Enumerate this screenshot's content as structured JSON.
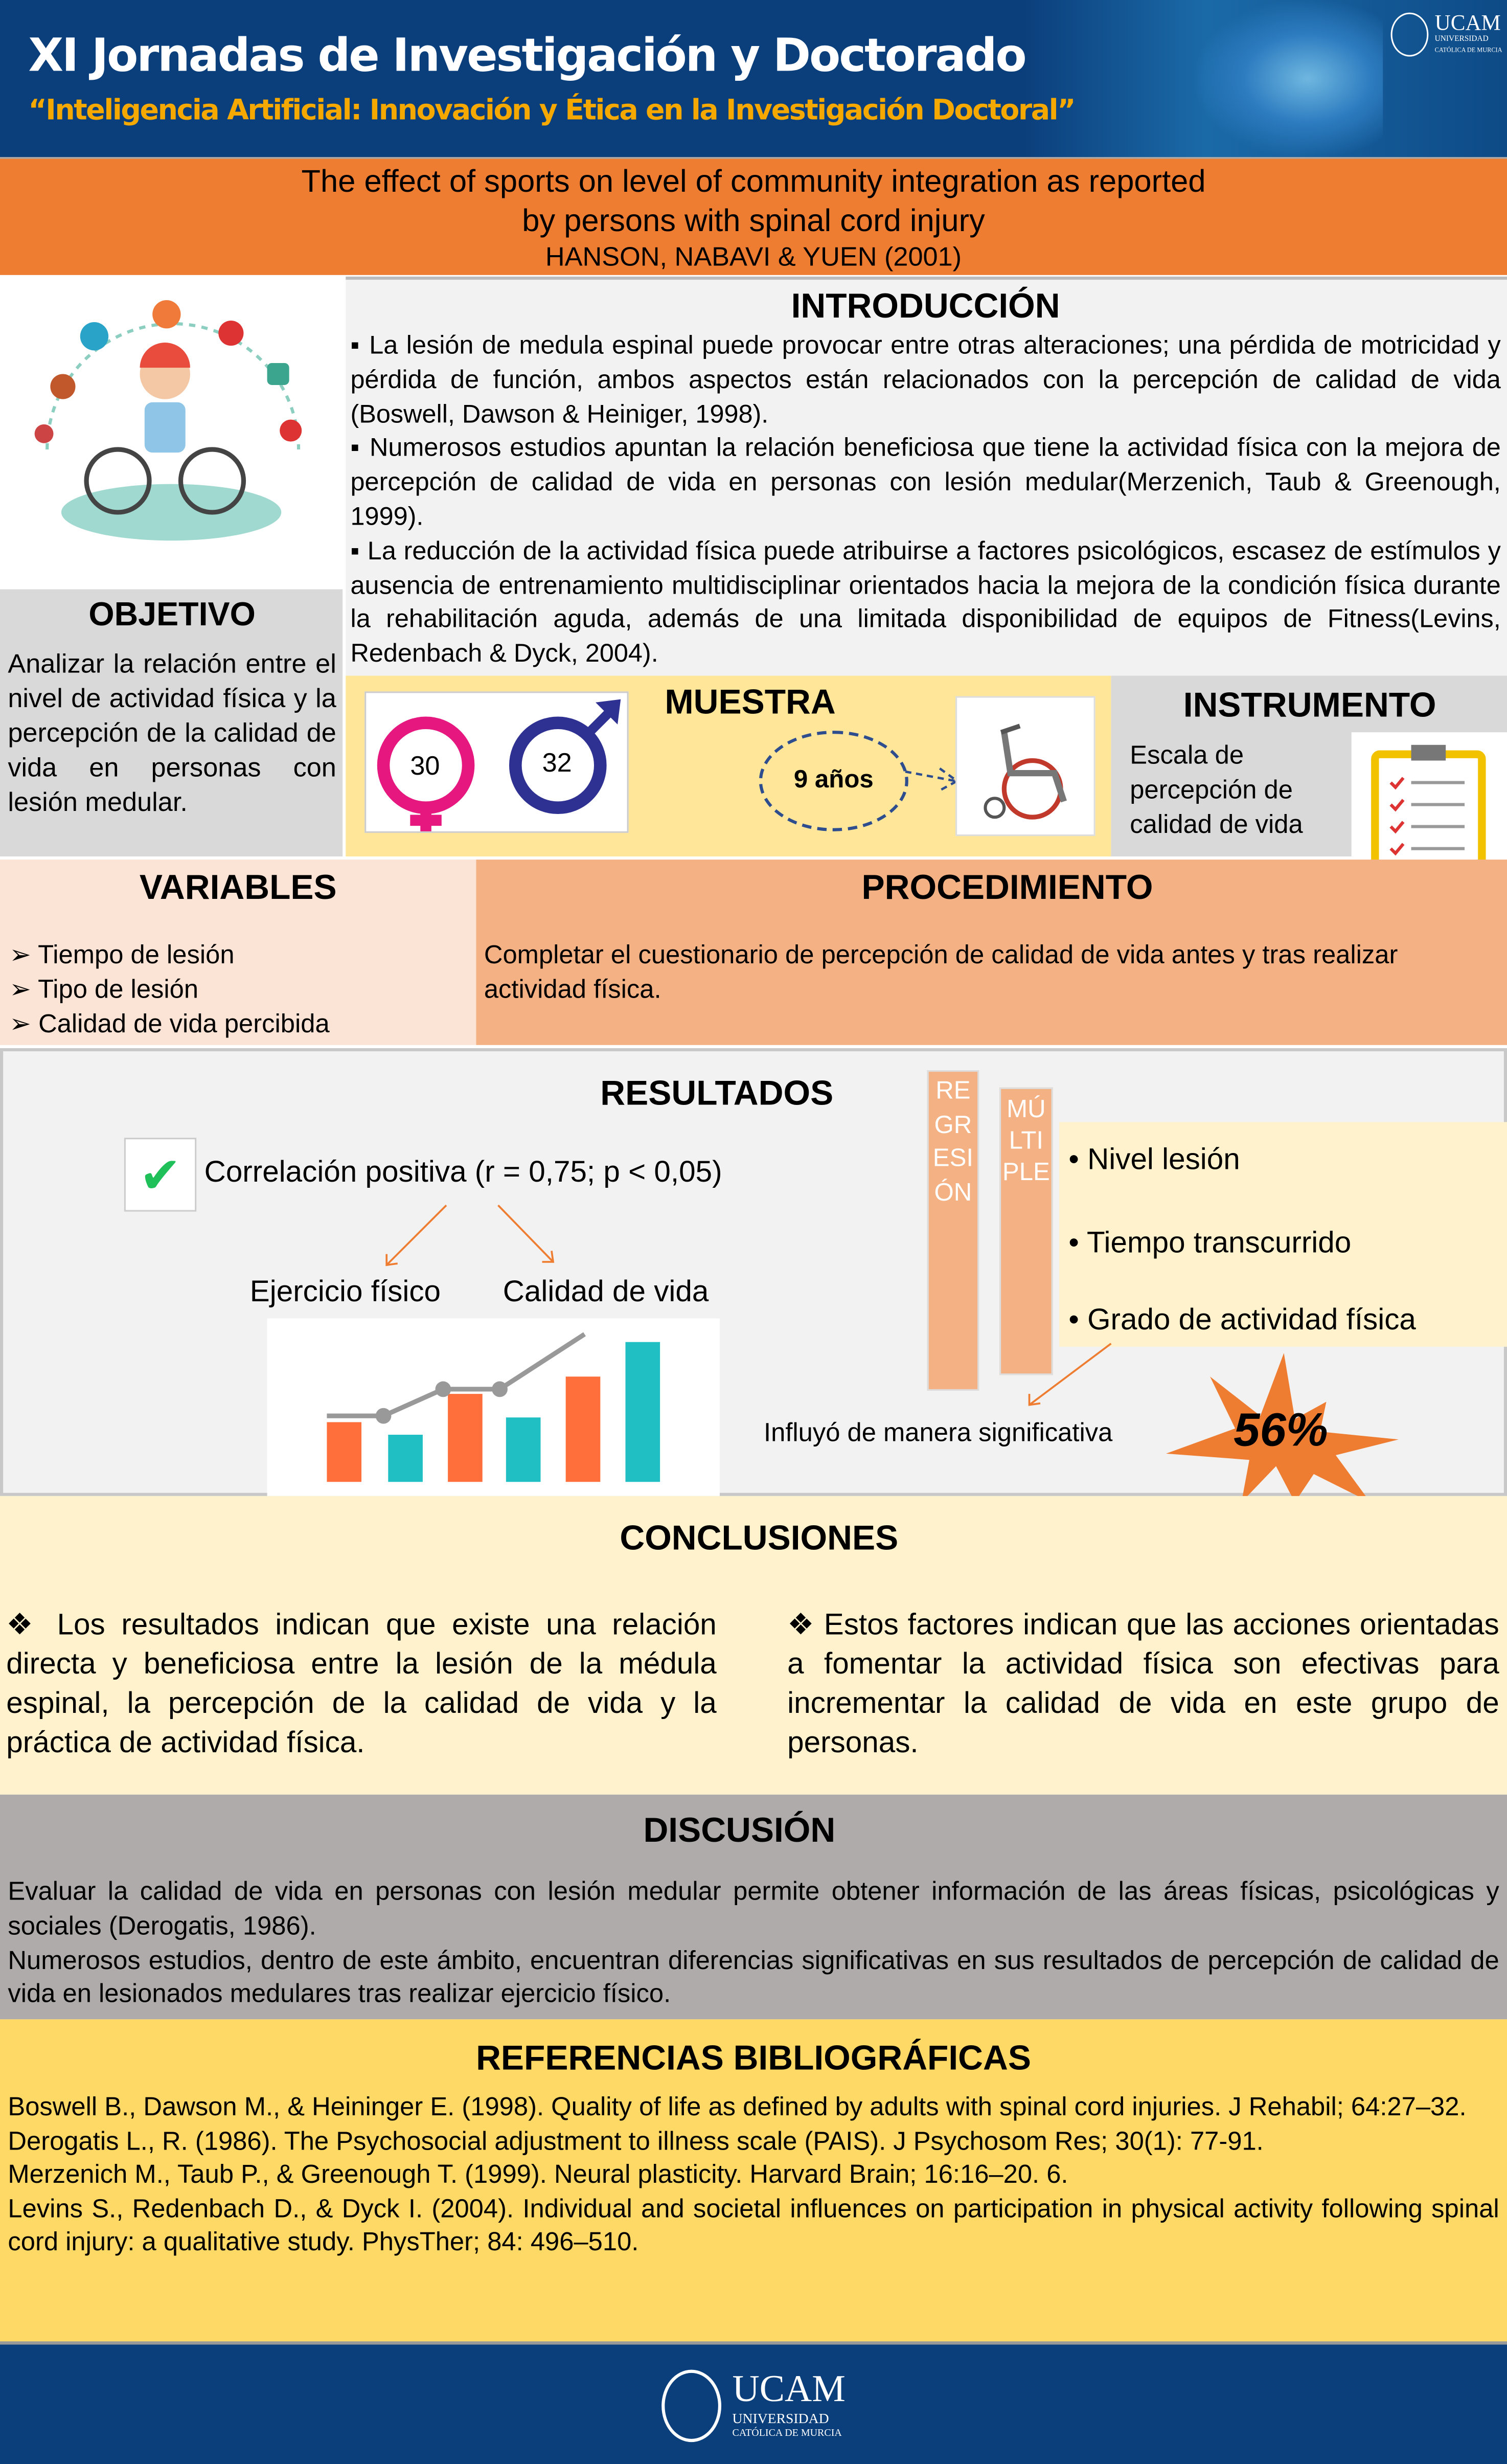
{
  "header": {
    "title": "XI Jornadas de Investigación y Doctorado",
    "subtitle": "“Inteligencia Artificial: Innovación y Ética en la Investigación Doctoral”",
    "logo_text": "UCAM",
    "logo_sub1": "UNIVERSIDAD",
    "logo_sub2": "CATÓLICA DE MURCIA"
  },
  "title_band": {
    "line1": "The effect of sports on level of community integration as reported",
    "line2": "by persons with spinal cord injury",
    "authors": "HANSON,  NABAVI & YUEN (2001)"
  },
  "intro": {
    "heading": "INTRODUCCIÓN",
    "paragraphs": [
      "▪ La lesión de medula espinal puede provocar entre otras alteraciones; una pérdida de motricidad y pérdida de función, ambos aspectos están relacionados con la percepción de calidad de vida (Boswell, Dawson & Heiniger, 1998).",
      "▪ Numerosos estudios apuntan la relación beneficiosa que tiene la actividad física con la mejora de percepción de calidad de vida en personas con lesión medular(Merzenich, Taub & Greenough, 1999).",
      "▪ La reducción de la actividad física puede atribuirse a factores psicológicos, escasez de estímulos y ausencia de entrenamiento multidisciplinar orientados hacia la mejora de la condición física  durante la rehabilitación aguda, además de una limitada disponibilidad de equipos de Fitness(Levins, Redenbach & Dyck, 2004)."
    ]
  },
  "objetivo": {
    "heading": "OBJETIVO",
    "text": "Analizar la relación entre el nivel de actividad física y la percepción de la calidad de vida en personas con lesión medular."
  },
  "muestra": {
    "heading": "MUESTRA",
    "female": "30",
    "male": "32",
    "age": "9 años",
    "colors": {
      "female": "#e6177e",
      "male": "#2e3192"
    }
  },
  "instrumento": {
    "heading": "INSTRUMENTO",
    "text": "Escala de percepción de calidad de vida"
  },
  "variables": {
    "heading": "VARIABLES",
    "items": [
      "Tiempo de lesión",
      "Tipo de lesión",
      "Calidad de vida percibida"
    ]
  },
  "procedimiento": {
    "heading": "PROCEDIMIENTO",
    "text": "Completar el cuestionario de percepción de calidad de vida antes y tras realizar actividad física."
  },
  "resultados": {
    "heading": "RESULTADOS",
    "correlation": "Correlación positiva (r = 0,75; p < 0,05)",
    "label_a": "Ejercicio físico",
    "label_b": "Calidad de vida",
    "regresion": "REGRESIÓN",
    "multiple": "MÚLTIPLE",
    "factors": [
      "Nivel lesión",
      "Tiempo transcurrido",
      "Grado de actividad física"
    ],
    "influence": "Influyó de manera significativa",
    "percent": "56%"
  },
  "conclusiones": {
    "heading": "CONCLUSIONES",
    "left": "❖ Los resultados indican que existe una relación directa y beneficiosa entre la lesión de la médula espinal, la percepción de la calidad de vida y la práctica de actividad física.",
    "right": "❖ Estos factores indican que las acciones orientadas a fomentar la actividad física son efectivas para incrementar la calidad de vida en este grupo de personas."
  },
  "discusion": {
    "heading": "DISCUSIÓN",
    "paragraphs": [
      "Evaluar la calidad de vida en personas con lesión medular permite obtener información de las áreas físicas, psicológicas y sociales (Derogatis, 1986).",
      "Numerosos estudios, dentro de este ámbito, encuentran diferencias significativas en sus resultados de percepción de calidad de vida en lesionados medulares tras realizar ejercicio físico."
    ]
  },
  "referencias": {
    "heading": "REFERENCIAS BIBLIOGRÁFICAS",
    "items": [
      "Boswell B., Dawson M., & Heininger E. (1998). Quality of life as defined by adults with spinal cord injuries. J Rehabil; 64:27–32.",
      "Derogatis L., R. (1986). The Psychosocial adjustment to illness scale (PAIS). J Psychosom Res; 30(1): 77-91.",
      "Merzenich M., Taub P., & Greenough T. (1999). Neural plasticity. Harvard Brain; 16:16–20. 6.",
      "Levins S., Redenbach D., & Dyck I. (2004). Individual and societal influences on participation in physical activity following spinal cord injury: a qualitative study. PhysTher; 84: 496–510."
    ]
  },
  "footer": {
    "logo_text": "UCAM",
    "logo_sub1": "UNIVERSIDAD",
    "logo_sub2": "CATÓLICA DE MURCIA"
  }
}
